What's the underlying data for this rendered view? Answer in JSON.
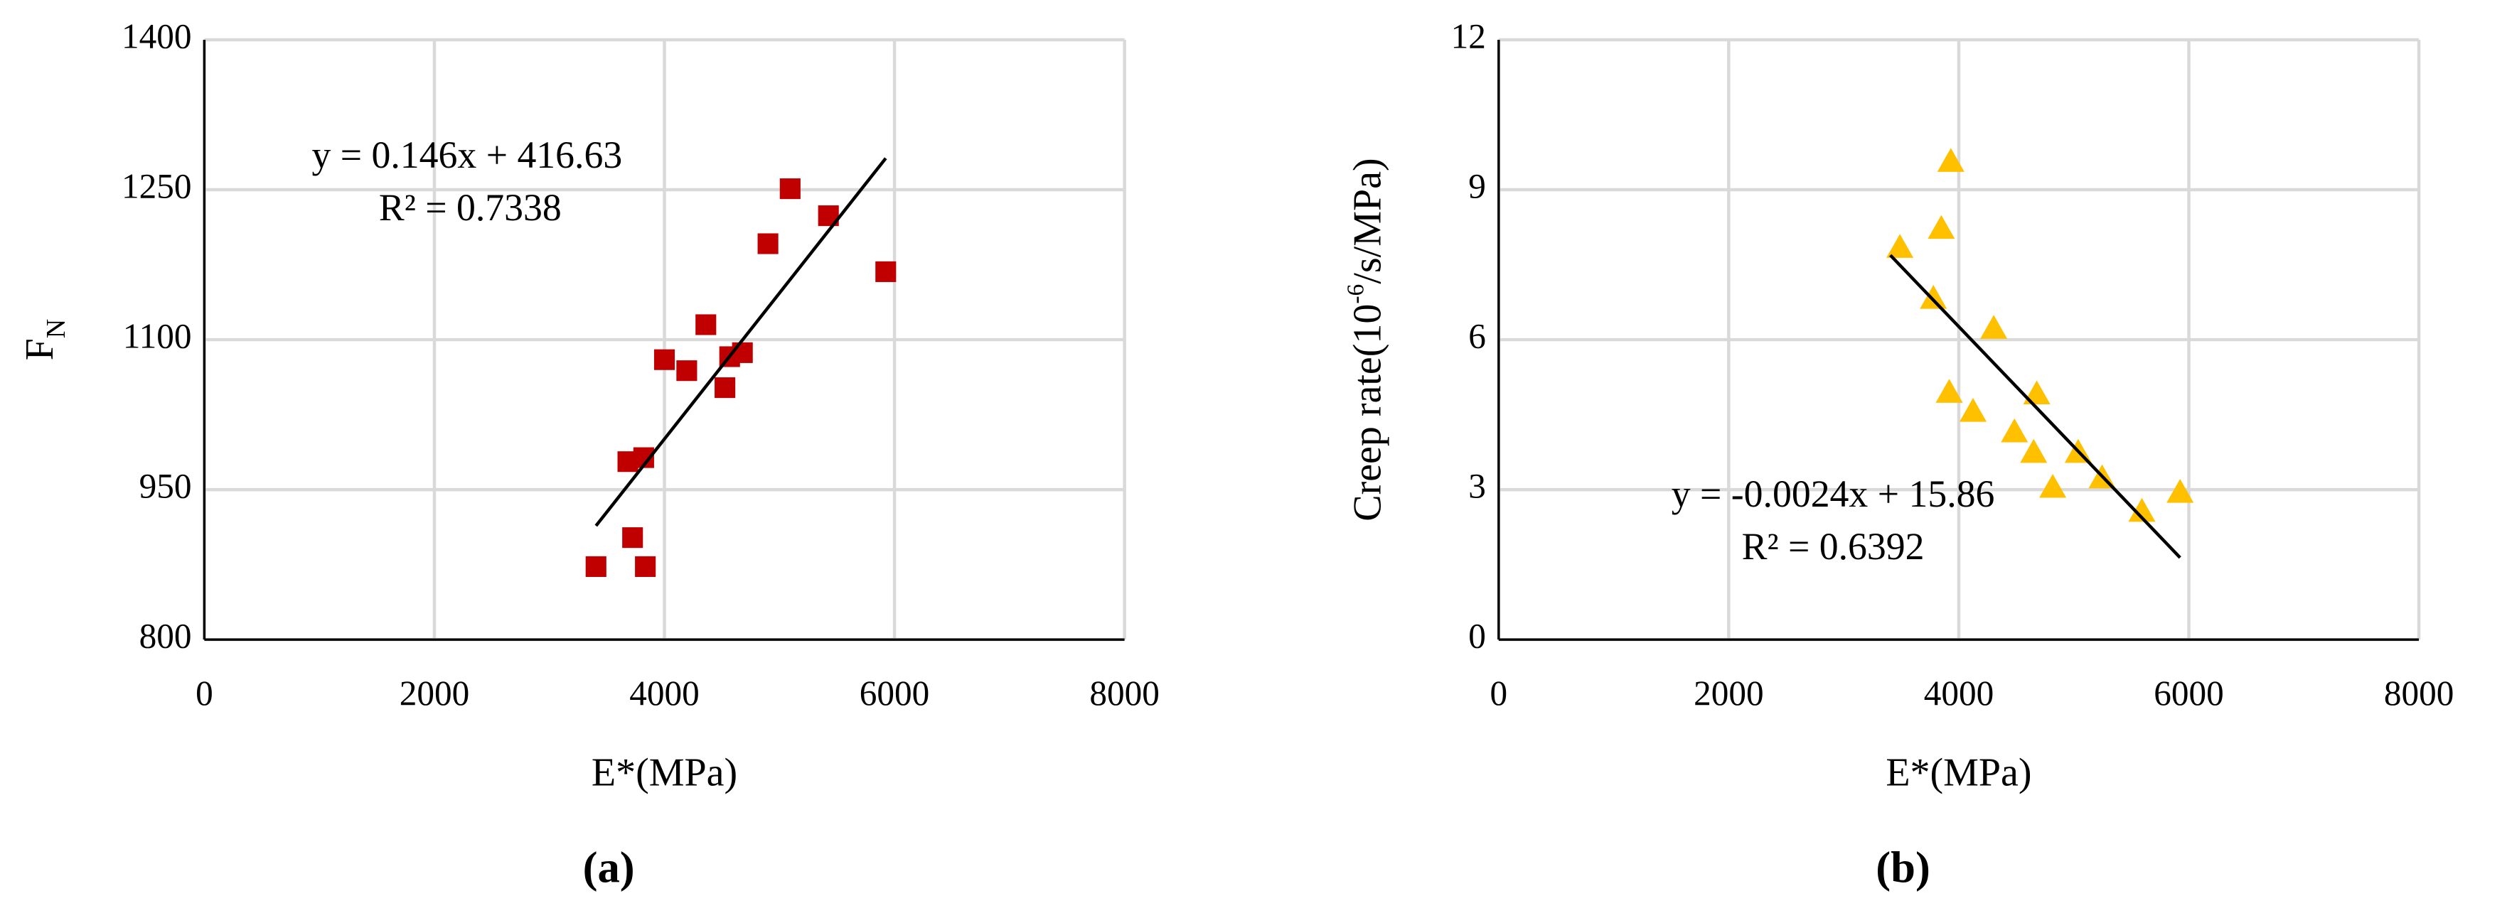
{
  "chart_data": [
    {
      "type": "scatter",
      "caption": "(a)",
      "x_label": "E*(MPa)",
      "y_label": [
        "F",
        "N"
      ],
      "xlim": [
        0,
        8000
      ],
      "xticks": [
        0,
        2000,
        4000,
        6000,
        8000
      ],
      "ylim": [
        800,
        1400
      ],
      "yticks": [
        800,
        950,
        1100,
        1250,
        1400
      ],
      "grid": true,
      "marker": "square",
      "color": "#c00000",
      "x": [
        3405,
        3682,
        3820,
        3723,
        3834,
        4000,
        4194,
        4360,
        4526,
        4567,
        4678,
        4900,
        5093,
        5426,
        5924
      ],
      "values": [
        873,
        978,
        982,
        902,
        873,
        1080,
        1069,
        1115,
        1052,
        1083,
        1087,
        1196,
        1251,
        1224,
        1168
      ],
      "trendline": {
        "x": [
          3405,
          5924
        ],
        "values": [
          913.8,
          1281.5
        ]
      },
      "annotations": [
        "y = 0.146x + 416.63",
        "R² = 0.7338"
      ]
    },
    {
      "type": "scatter",
      "caption": "(b)",
      "x_label": "E*(MPa)",
      "y_label": [
        "Creep rate(10",
        "-6",
        "/s/MPa)"
      ],
      "xlim": [
        0,
        8000
      ],
      "xticks": [
        0,
        2000,
        4000,
        6000,
        8000
      ],
      "ylim": [
        0,
        12
      ],
      "yticks": [
        0,
        3,
        6,
        9,
        12
      ],
      "grid": true,
      "marker": "triangle",
      "color": "#ffc000",
      "x": [
        3488,
        3779,
        3848,
        3931,
        3917,
        4124,
        4304,
        4484,
        4651,
        4678,
        4817,
        5038,
        5246,
        5592,
        5924
      ],
      "values": [
        7.86,
        6.84,
        8.24,
        9.58,
        4.96,
        4.58,
        6.24,
        4.17,
        3.76,
        4.93,
        3.06,
        3.76,
        3.25,
        2.58,
        2.96
      ],
      "trendline": {
        "x": [
          3405,
          5924
        ],
        "values": [
          7.69,
          1.64
        ]
      },
      "annotations": [
        "y = -0.0024x + 15.86",
        "R² = 0.6392"
      ]
    }
  ]
}
